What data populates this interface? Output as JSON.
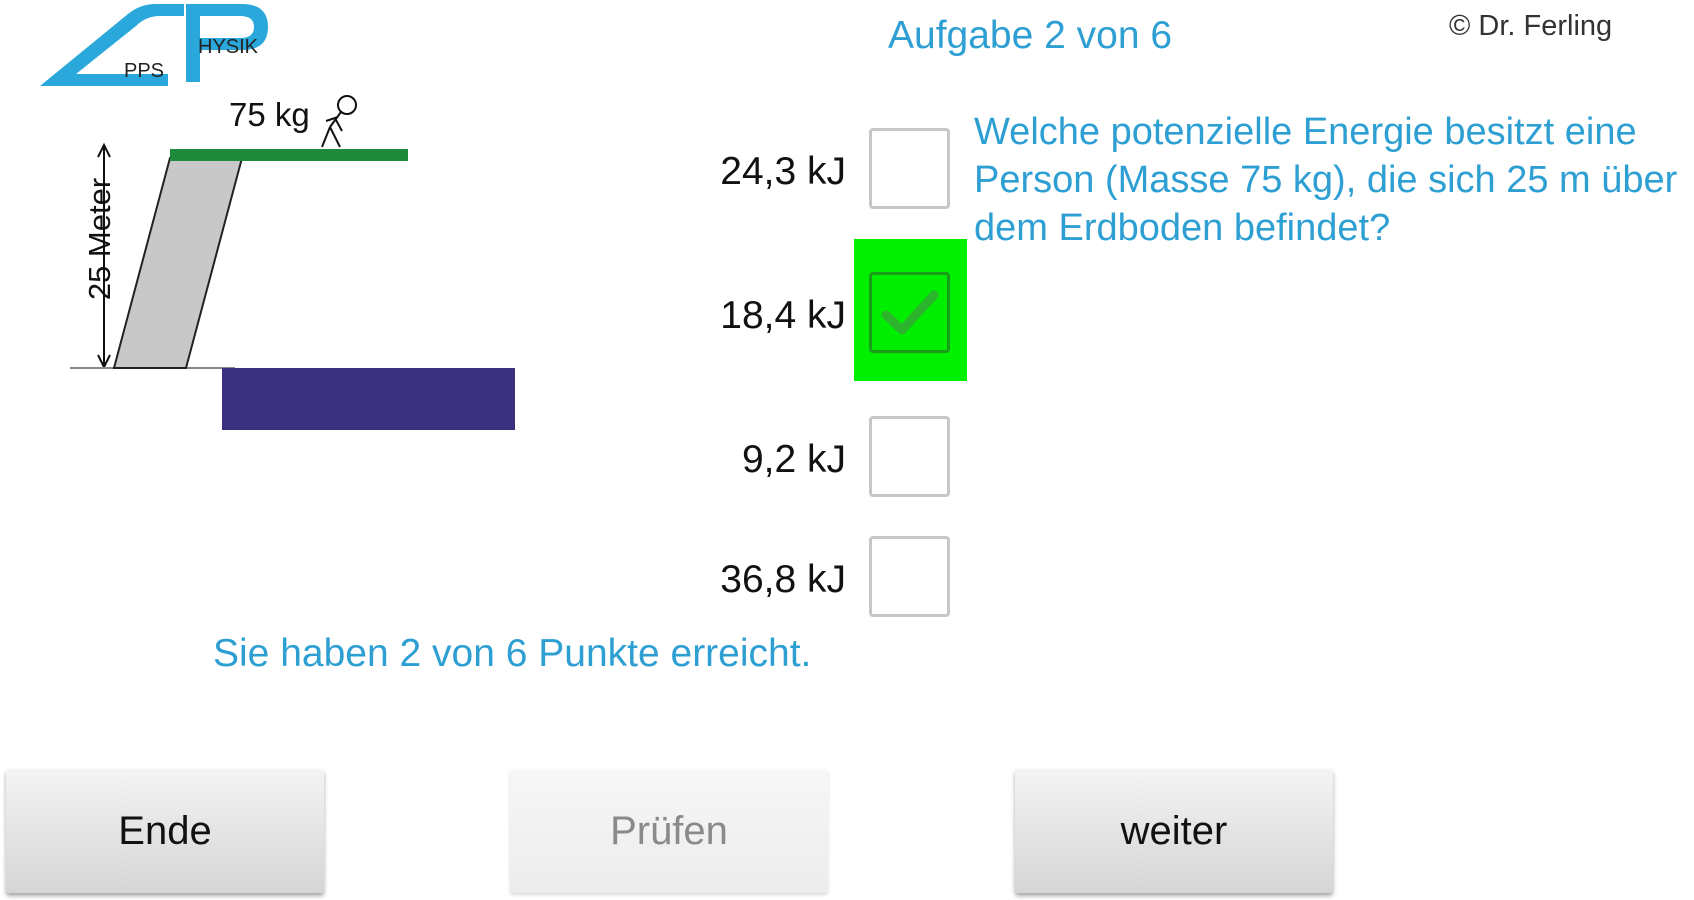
{
  "header": {
    "logo": {
      "text_pps": "PPS",
      "text_hysik": "HYSIK",
      "color": "#2aa7db"
    },
    "task_counter": "Aufgabe 2 von 6",
    "copyright": "© Dr. Ferling"
  },
  "illustration": {
    "mass_label": "75 kg",
    "height_label": "25 Meter",
    "colors": {
      "platform": "#1e8a3c",
      "tower": "#c8c8c8",
      "water": "#39307f"
    }
  },
  "question": {
    "text": "Welche potenzielle Energie besitzt eine Person (Masse 75 kg), die sich 25 m über dem Erdboden befindet?"
  },
  "answers": [
    {
      "label": "24,3 kJ",
      "checked": false
    },
    {
      "label": "18,4 kJ",
      "checked": true
    },
    {
      "label": "9,2 kJ",
      "checked": false
    },
    {
      "label": "36,8 kJ",
      "checked": false
    }
  ],
  "feedback": {
    "correct_highlight_color": "#00f000"
  },
  "score_text": "Sie haben 2 von 6 Punkte erreicht.",
  "buttons": {
    "end_label": "Ende",
    "check_label": "Prüfen",
    "next_label": "weiter",
    "check_disabled": true
  },
  "colors": {
    "accent_text": "#2d9fd3",
    "correct_green": "#00ee00"
  }
}
